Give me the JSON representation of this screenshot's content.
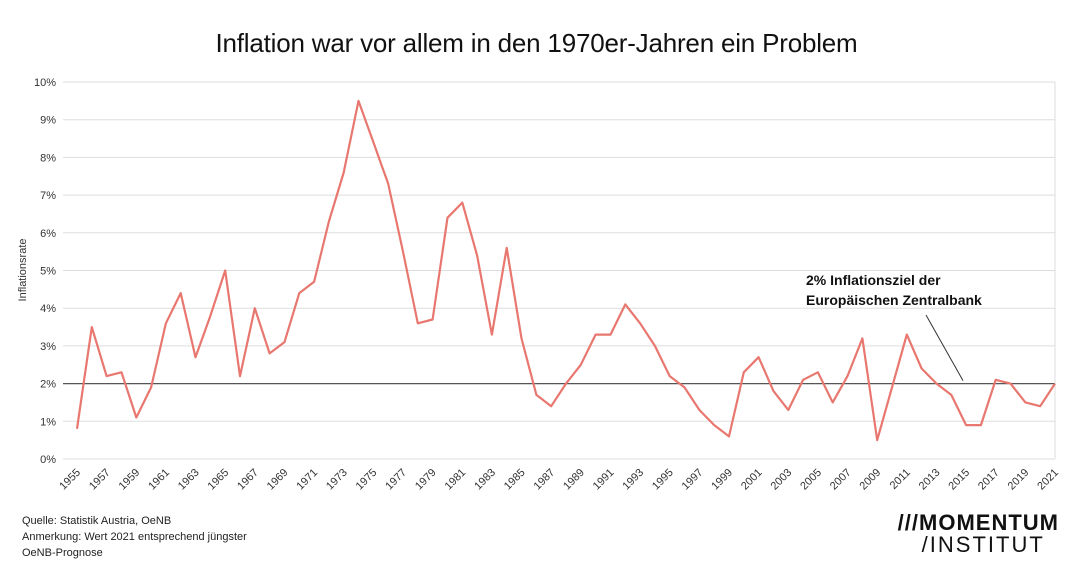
{
  "title": "Inflation war vor allem in den 1970er-Jahren ein Problem",
  "footer": {
    "source": "Quelle: Statistik Austria, OeNB",
    "note_line1": "Anmerkung: Wert 2021 entsprechend jüngster",
    "note_line2": "OeNB-Prognose"
  },
  "logo": {
    "line1": "MOMENTUM",
    "line1_prefix": "///",
    "line2": "/INSTITUT"
  },
  "colors": {
    "series": "#e8776f",
    "target_line": "#555555",
    "grid": "#dddddd"
  },
  "chart_data": {
    "type": "line",
    "title": "Inflation war vor allem in den 1970er-Jahren ein Problem",
    "xlabel": "",
    "ylabel": "Inflationsrate",
    "ylim": [
      0,
      10
    ],
    "grid": true,
    "x": [
      1955,
      1956,
      1957,
      1958,
      1959,
      1960,
      1961,
      1962,
      1963,
      1964,
      1965,
      1966,
      1967,
      1968,
      1969,
      1970,
      1971,
      1972,
      1973,
      1974,
      1975,
      1976,
      1977,
      1978,
      1979,
      1980,
      1981,
      1982,
      1983,
      1984,
      1985,
      1986,
      1987,
      1988,
      1989,
      1990,
      1991,
      1992,
      1993,
      1994,
      1995,
      1996,
      1997,
      1998,
      1999,
      2000,
      2001,
      2002,
      2003,
      2004,
      2005,
      2006,
      2007,
      2008,
      2009,
      2010,
      2011,
      2012,
      2013,
      2014,
      2015,
      2016,
      2017,
      2018,
      2019,
      2020,
      2021
    ],
    "x_tick_labels": [
      "1955",
      "1957",
      "1959",
      "1961",
      "1963",
      "1965",
      "1967",
      "1969",
      "1971",
      "1973",
      "1975",
      "1977",
      "1979",
      "1981",
      "1983",
      "1985",
      "1987",
      "1989",
      "1991",
      "1993",
      "1995",
      "1997",
      "1999",
      "2001",
      "2003",
      "2005",
      "2007",
      "2009",
      "2011",
      "2013",
      "2015",
      "2017",
      "2019",
      "2021"
    ],
    "y_tick_labels": [
      "0%",
      "1%",
      "2%",
      "3%",
      "4%",
      "5%",
      "6%",
      "7%",
      "8%",
      "9%",
      "10%"
    ],
    "series": [
      {
        "values": [
          0.8,
          3.5,
          2.2,
          2.3,
          1.1,
          1.9,
          3.6,
          4.4,
          2.7,
          3.8,
          5.0,
          2.2,
          4.0,
          2.8,
          3.1,
          4.4,
          4.7,
          6.3,
          7.6,
          9.5,
          8.4,
          7.3,
          5.5,
          3.6,
          3.7,
          6.4,
          6.8,
          5.4,
          3.3,
          5.6,
          3.2,
          1.7,
          1.4,
          2.0,
          2.5,
          3.3,
          3.3,
          4.1,
          3.6,
          3.0,
          2.2,
          1.9,
          1.3,
          0.9,
          0.6,
          2.3,
          2.7,
          1.8,
          1.3,
          2.1,
          2.3,
          1.5,
          2.2,
          3.2,
          0.5,
          1.9,
          3.3,
          2.4,
          2.0,
          1.7,
          0.9,
          0.9,
          2.1,
          2.0,
          1.5,
          1.4,
          2.0
        ]
      }
    ],
    "reference_line": {
      "value": 2,
      "label_line1": "2% Inflationsziel der",
      "label_line2": "Europäischen Zentralbank"
    }
  }
}
